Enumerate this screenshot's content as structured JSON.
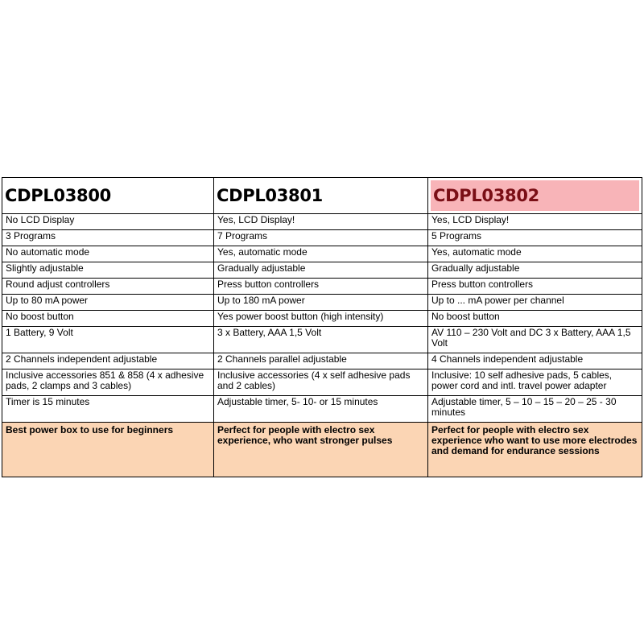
{
  "columns": [
    "CDPL03800",
    "CDPL03801",
    "CDPL03802"
  ],
  "rows": [
    [
      "No LCD Display",
      "Yes, LCD Display!",
      "Yes, LCD Display!"
    ],
    [
      "3 Programs",
      "7 Programs",
      "5 Programs"
    ],
    [
      "No automatic mode",
      "Yes, automatic mode",
      "Yes, automatic mode"
    ],
    [
      "Slightly adjustable",
      "Gradually adjustable",
      "Gradually adjustable"
    ],
    [
      "Round adjust controllers",
      "Press button controllers",
      "Press button controllers"
    ],
    [
      "Up to 80 mA power",
      "Up to 180 mA power",
      "Up to  ... mA power per channel"
    ],
    [
      "No boost button",
      "Yes power boost button  (high intensity)",
      "No boost button"
    ],
    [
      "1 Battery, 9 Volt",
      "3 x Battery, AAA 1,5 Volt",
      "AV 110 – 230 Volt and DC 3 x Battery, AAA 1,5 Volt"
    ],
    [
      "2 Channels independent adjustable",
      "2 Channels parallel adjustable",
      "4 Channels independent adjustable"
    ],
    [
      "Inclusive accessories 851 & 858 (4 x adhesive pads, 2 clamps and 3 cables)",
      "Inclusive accessories (4 x self adhesive pads and 2 cables)",
      "Inclusive: 10 self adhesive pads, 5 cables, power cord and intl. travel power adapter"
    ],
    [
      "Timer is 15 minutes",
      "Adjustable timer, 5- 10- or 15 minutes",
      "Adjustable timer, 5 – 10 – 15 – 20 – 25 - 30 minutes"
    ]
  ],
  "footer": [
    "Best power box to use for beginners",
    "Perfect for people with electro sex experience, who want stronger pulses",
    "Perfect for people with electro sex experience who want to use more electrodes and demand for endurance sessions"
  ],
  "colors": {
    "highlight_bg": "#f8b4b8",
    "highlight_text": "#7a0f16",
    "footer_bg": "#fbd5b4"
  }
}
